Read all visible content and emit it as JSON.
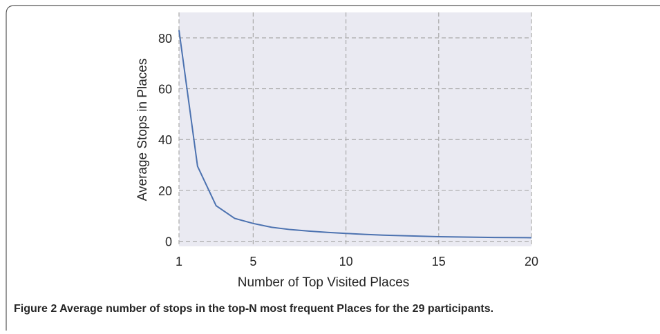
{
  "chart_data": {
    "type": "line",
    "xlabel": "Number of Top Visited Places",
    "ylabel": "Average Stops in Places",
    "caption": "Figure 2  Average number of stops in the top-N most frequent Places for the 29 participants.",
    "x": [
      1,
      2,
      3,
      4,
      5,
      6,
      7,
      8,
      9,
      10,
      11,
      12,
      13,
      14,
      15,
      16,
      17,
      18,
      19,
      20
    ],
    "series": [
      {
        "color": "#4c72b0",
        "values": [
          83,
          29.5,
          14,
          9,
          7,
          5.5,
          4.6,
          4,
          3.5,
          3.1,
          2.7,
          2.4,
          2.2,
          2,
          1.8,
          1.7,
          1.6,
          1.5,
          1.45,
          1.4
        ]
      }
    ],
    "xlim": [
      1,
      20
    ],
    "ylim": [
      -2,
      90
    ],
    "xticks": [
      1,
      5,
      10,
      15,
      20
    ],
    "yticks": [
      0,
      20,
      40,
      60,
      80
    ],
    "grid": true,
    "background": "#eaeaf2"
  }
}
